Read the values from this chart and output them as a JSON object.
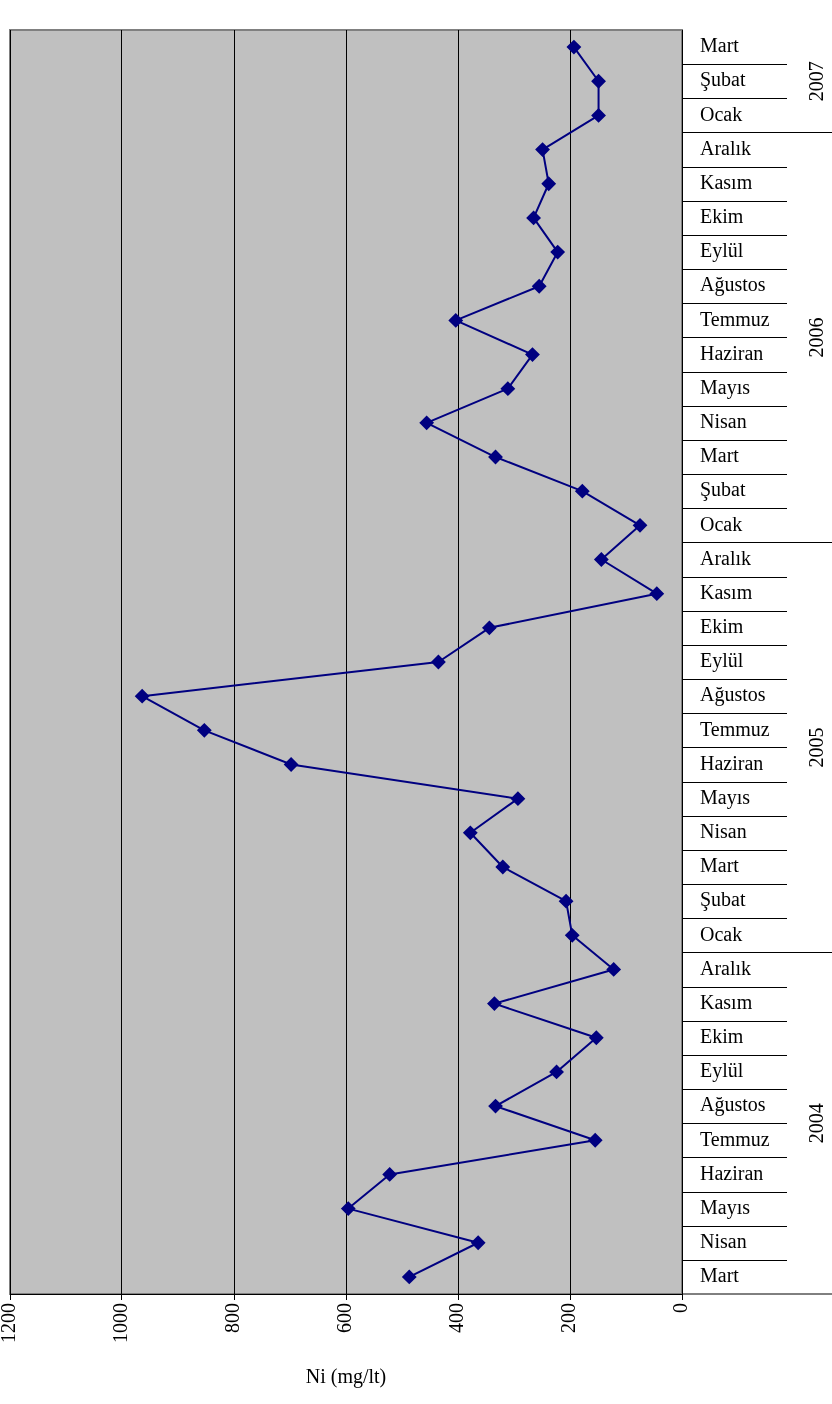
{
  "chart_data": {
    "type": "line",
    "orientation": "horizontal",
    "xlabel": "Ni (mg/lt)",
    "categories": [
      "Mart",
      "Şubat",
      "Ocak",
      "Aralık",
      "Kasım",
      "Ekim",
      "Eylül",
      "Ağustos",
      "Temmuz",
      "Haziran",
      "Mayıs",
      "Nisan",
      "Mart",
      "Şubat",
      "Ocak",
      "Aralık",
      "Kasım",
      "Ekim",
      "Eylül",
      "Ağustos",
      "Temmuz",
      "Haziran",
      "Mayıs",
      "Nisan",
      "Mart",
      "Şubat",
      "Ocak",
      "Aralık",
      "Kasım",
      "Ekim",
      "Eylül",
      "Ağustos",
      "Temmuz",
      "Haziran",
      "Mayıs",
      "Nisan",
      "Mart"
    ],
    "series": [
      {
        "color": "#000080",
        "values": [
          193,
          149,
          149,
          249,
          238,
          265,
          222,
          255,
          404,
          267,
          311,
          456,
          333,
          178,
          75,
          144,
          45,
          344,
          435,
          964,
          853,
          698,
          293,
          378,
          320,
          207,
          196,
          122,
          335,
          153,
          224,
          333,
          155,
          522,
          596,
          364,
          487
        ]
      }
    ],
    "xlim": [
      1200,
      0
    ],
    "xticks": [
      0,
      200,
      400,
      600,
      800,
      1000,
      1200
    ],
    "grid": "x",
    "legend": false,
    "marker": "diamond",
    "line_style": "solid",
    "annotations": [
      "2007",
      "2006",
      "2005",
      "2004"
    ]
  }
}
